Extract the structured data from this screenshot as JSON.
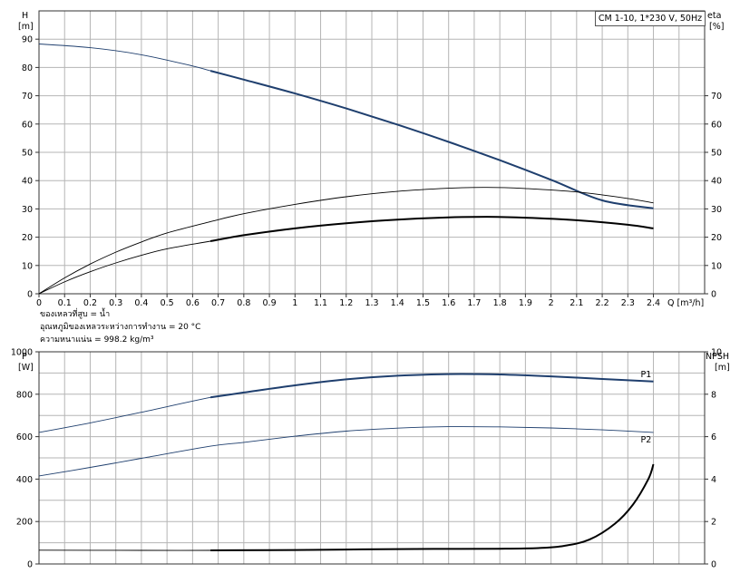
{
  "title": "CM 1-10, 1*230 V, 50Hz",
  "fluid_info": {
    "line1": "ของเหลวที่สูบ = น้ำ",
    "line2": "อุณหภูมิของเหลวระหว่างการทำงาน = 20 °C",
    "line3": "ความหนาแน่น = 998.2 kg/m³"
  },
  "colors": {
    "blue": "#1f3f6e",
    "black": "#000000",
    "grid": "#b5b5b5"
  },
  "chart_data": [
    {
      "type": "line",
      "name": "top",
      "left_axis": {
        "label_line1": "H",
        "label_line2": "[m]",
        "ylim": [
          0,
          100
        ],
        "ticks": [
          0,
          10,
          20,
          30,
          40,
          50,
          60,
          70,
          80,
          90
        ]
      },
      "right_axis": {
        "label_line1": "eta",
        "label_line2": "[%]",
        "ylim": [
          0,
          100
        ],
        "ticks": [
          0,
          10,
          20,
          30,
          40,
          50,
          60,
          70
        ]
      },
      "x_axis": {
        "label": "Q [m³/h]",
        "xlim": [
          0,
          2.6
        ],
        "ticks": [
          "0",
          "0.1",
          "0.2",
          "0.3",
          "0.4",
          "0.5",
          "0.6",
          "0.7",
          "0.8",
          "0.9",
          "1",
          "1.1",
          "1.2",
          "1.3",
          "1.4",
          "1.5",
          "1.6",
          "1.7",
          "1.8",
          "1.9",
          "2",
          "2.1",
          "2.2",
          "2.3",
          "2.4"
        ]
      },
      "series": [
        {
          "axis": "left",
          "color": "#1f3f6e",
          "x": [
            0,
            0.2,
            0.4,
            0.6,
            0.67,
            0.8,
            1.0,
            1.2,
            1.4,
            1.6,
            1.8,
            2.0,
            2.2,
            2.4
          ],
          "y": [
            88.3,
            87,
            84.5,
            80.5,
            78.8,
            75.7,
            70.8,
            65.5,
            59.8,
            53.7,
            47.2,
            40.3,
            33,
            30.2
          ],
          "start_bold": 0.67
        },
        {
          "axis": "right",
          "color": "#000000",
          "x": [
            0,
            0.1,
            0.2,
            0.3,
            0.4,
            0.5,
            0.67,
            0.8,
            1.0,
            1.2,
            1.4,
            1.6,
            1.75,
            1.9,
            2.1,
            2.3,
            2.4
          ],
          "y": [
            0,
            5.6,
            10.5,
            14.7,
            18.3,
            21.5,
            25.5,
            28.3,
            31.6,
            34.3,
            36.2,
            37.3,
            37.6,
            37.2,
            36,
            33.7,
            32.1
          ],
          "start_bold": 99
        },
        {
          "axis": "right",
          "color": "#000000",
          "x": [
            0,
            0.1,
            0.2,
            0.3,
            0.4,
            0.5,
            0.67,
            0.8,
            1.0,
            1.2,
            1.4,
            1.6,
            1.75,
            1.9,
            2.1,
            2.3,
            2.4
          ],
          "y": [
            0,
            4.2,
            7.8,
            10.9,
            13.6,
            15.9,
            18.6,
            20.7,
            23.1,
            24.9,
            26.2,
            27,
            27.2,
            26.9,
            26,
            24.4,
            23.1
          ],
          "start_bold": 0.67
        }
      ]
    },
    {
      "type": "line",
      "name": "bottom",
      "left_axis": {
        "label_line1": "P",
        "label_line2": "[W]",
        "ylim": [
          0,
          1000
        ],
        "ticks": [
          0,
          200,
          400,
          600,
          800,
          1000
        ]
      },
      "right_axis": {
        "label_line1": "NPSH",
        "label_line2": "[m]",
        "ylim": [
          0,
          10
        ],
        "ticks": [
          0,
          2,
          4,
          6,
          8,
          10
        ]
      },
      "series": [
        {
          "name": "P1",
          "axis": "left",
          "color": "#1f3f6e",
          "x": [
            0,
            0.2,
            0.4,
            0.67,
            0.8,
            1.0,
            1.2,
            1.4,
            1.6,
            1.8,
            2.0,
            2.2,
            2.4
          ],
          "y": [
            620,
            665,
            715,
            785,
            808,
            842,
            870,
            887,
            895,
            893,
            884,
            872,
            860
          ],
          "start_bold": 0.67
        },
        {
          "name": "P2",
          "axis": "left",
          "color": "#1f3f6e",
          "x": [
            0,
            0.2,
            0.4,
            0.67,
            0.8,
            1.0,
            1.2,
            1.4,
            1.6,
            1.8,
            2.0,
            2.2,
            2.4
          ],
          "y": [
            415,
            455,
            498,
            555,
            573,
            602,
            626,
            640,
            647,
            646,
            641,
            632,
            620
          ],
          "start_bold": 99
        },
        {
          "axis": "right",
          "color": "#000000",
          "x": [
            0,
            0.4,
            0.67,
            1.0,
            1.4,
            1.8,
            1.95,
            2.05,
            2.15,
            2.25,
            2.32,
            2.38,
            2.4
          ],
          "y": [
            0.65,
            0.64,
            0.64,
            0.66,
            0.7,
            0.72,
            0.75,
            0.85,
            1.15,
            1.9,
            2.8,
            4.0,
            4.7
          ],
          "start_bold": 0.67
        }
      ]
    }
  ]
}
